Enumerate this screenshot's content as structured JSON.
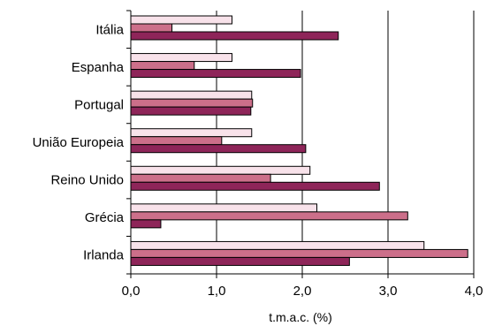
{
  "chart_data": {
    "type": "bar",
    "orientation": "horizontal",
    "categories": [
      "Itália",
      "Espanha",
      "Portugal",
      "União Europeia",
      "Reino Unido",
      "Grécia",
      "Irlanda"
    ],
    "series": [
      {
        "values": [
          1.18,
          1.18,
          1.41,
          1.41,
          2.09,
          2.17,
          3.42
        ],
        "color": "#f8e2ea"
      },
      {
        "values": [
          0.48,
          0.74,
          1.42,
          1.06,
          1.63,
          3.23,
          3.93
        ],
        "color": "#cc6f8a"
      },
      {
        "values": [
          2.42,
          1.98,
          1.4,
          2.04,
          2.9,
          0.35,
          2.55
        ],
        "color": "#8e2559"
      }
    ],
    "xlabel": "t.m.a.c. (%)",
    "xlim": [
      0,
      4
    ],
    "xticks": [
      "0,0",
      "1,0",
      "2,0",
      "3,0",
      "4,0"
    ],
    "grid": "vertical",
    "legend": "none"
  }
}
